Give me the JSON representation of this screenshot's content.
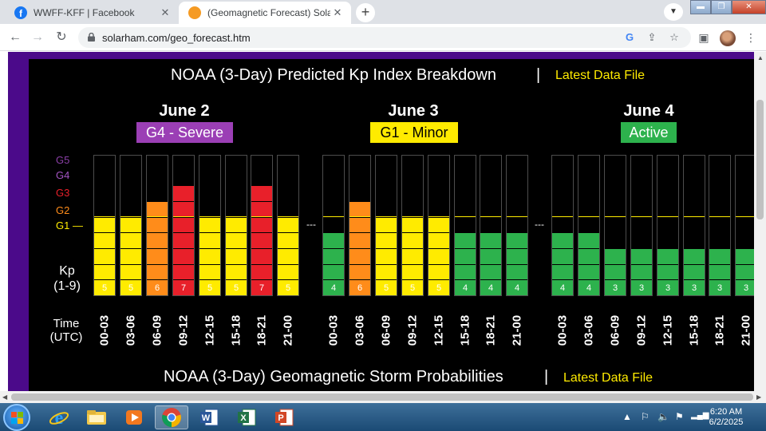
{
  "tabs": [
    {
      "title": "WWFF-KFF | Facebook",
      "icon": "facebook-icon"
    },
    {
      "title": "(Geomagnetic Forecast) SolarHam",
      "icon": "solarham-icon"
    }
  ],
  "address": {
    "url": "solarham.com/geo_forecast.htm"
  },
  "page": {
    "kp_title": "NOAA (3-Day) Predicted Kp Index Breakdown",
    "separator": "|",
    "kp_link": "Latest Data File",
    "storm_title": "NOAA (3-Day) Geomagnetic Storm Probabilities",
    "storm_link": "Latest Data File",
    "g_levels": [
      "G5",
      "G4",
      "G3",
      "G2",
      "G1 —"
    ],
    "kp_axis": [
      "Kp",
      "(1-9)"
    ],
    "time_axis": [
      "Time",
      "(UTC)"
    ],
    "gap_marker": "---"
  },
  "days": [
    {
      "label": "June 2",
      "badge": "G4 - Severe",
      "badge_color": "#9b3fb5",
      "badge_text_color": "#ffffff"
    },
    {
      "label": "June 3",
      "badge": "G1 - Minor",
      "badge_color": "#ffeb00",
      "badge_text_color": "#000000"
    },
    {
      "label": "June 4",
      "badge": "Active",
      "badge_color": "#2db24d",
      "badge_text_color": "#ffffff"
    }
  ],
  "chart_data": {
    "type": "bar",
    "ylabel": "Kp (1-9)",
    "xlabel": "Time (UTC)",
    "ylim": [
      0,
      9
    ],
    "categories": [
      "00-03",
      "03-06",
      "06-09",
      "09-12",
      "12-15",
      "15-18",
      "18-21",
      "21-00"
    ],
    "series": [
      {
        "name": "June 2",
        "values": [
          5,
          5,
          6,
          7,
          5,
          5,
          7,
          5
        ]
      },
      {
        "name": "June 3",
        "values": [
          4,
          6,
          5,
          5,
          5,
          4,
          4,
          4
        ]
      },
      {
        "name": "June 4",
        "values": [
          4,
          4,
          3,
          3,
          3,
          3,
          3,
          3
        ]
      }
    ],
    "level_colors": {
      "quiet": "#2db24d",
      "g1": "#ffeb00",
      "g2": "#ff8c1a",
      "g3": "#e8202a",
      "g4": "#9b3fb5",
      "g5": "#7a2a8c"
    }
  },
  "taskbar": {
    "apps": [
      "internet-explorer-icon",
      "file-explorer-icon",
      "media-player-icon",
      "chrome-icon",
      "word-icon",
      "excel-icon",
      "powerpoint-icon"
    ],
    "time": "6:20 AM",
    "date": "6/2/2025"
  }
}
